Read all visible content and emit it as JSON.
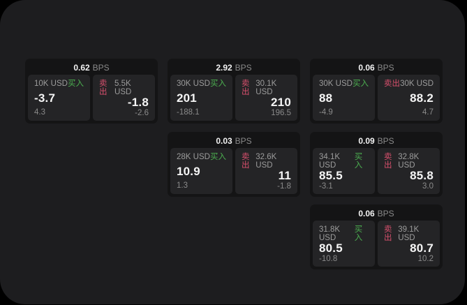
{
  "labels": {
    "bps_unit": "BPS",
    "buy": "买入",
    "sell": "卖出"
  },
  "colors": {
    "buy_green": "#4caf50",
    "sell_red": "#d8506d",
    "window_bg": "#1d1d1f",
    "card_bg": "#141415",
    "panel_bg": "#242426"
  },
  "cards": [
    {
      "bps": "0.62",
      "buy": {
        "amount": "10K USD",
        "price": "-3.7",
        "delta": "4.3"
      },
      "sell": {
        "amount": "5.5K USD",
        "price": "-1.8",
        "delta": "-2.6"
      }
    },
    {
      "bps": "2.92",
      "buy": {
        "amount": "30K USD",
        "price": "201",
        "delta": "-188.1"
      },
      "sell": {
        "amount": "30.1K USD",
        "price": "210",
        "delta": "196.5"
      }
    },
    {
      "bps": "0.06",
      "buy": {
        "amount": "30K USD",
        "price": "88",
        "delta": "-4.9"
      },
      "sell": {
        "amount": "30K USD",
        "price": "88.2",
        "delta": "4.7"
      }
    },
    {
      "bps": "0.03",
      "buy": {
        "amount": "28K USD",
        "price": "10.9",
        "delta": "1.3"
      },
      "sell": {
        "amount": "32.6K USD",
        "price": "11",
        "delta": "-1.8"
      }
    },
    {
      "bps": "0.09",
      "buy": {
        "amount": "34.1K USD",
        "price": "85.5",
        "delta": "-3.1"
      },
      "sell": {
        "amount": "32.8K USD",
        "price": "85.8",
        "delta": "3.0"
      }
    },
    {
      "bps": "0.06",
      "buy": {
        "amount": "31.8K USD",
        "price": "80.5",
        "delta": "-10.8"
      },
      "sell": {
        "amount": "39.1K USD",
        "price": "80.7",
        "delta": "10.2"
      }
    }
  ]
}
